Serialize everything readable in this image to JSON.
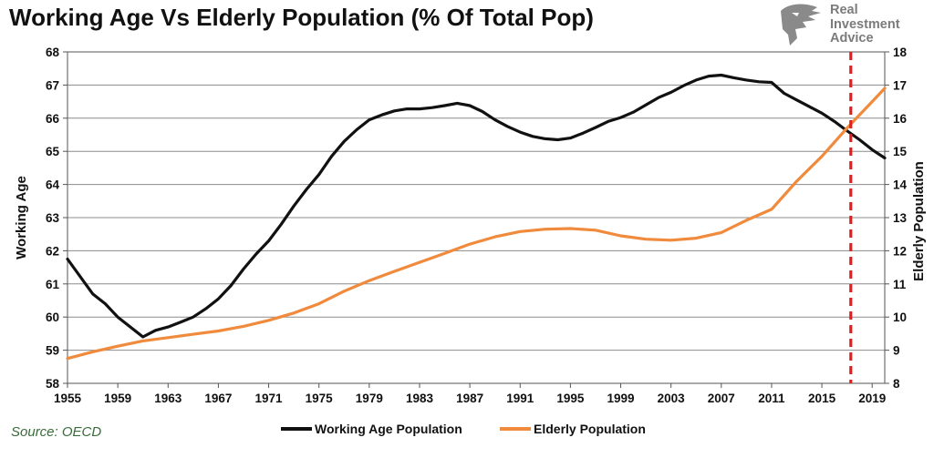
{
  "chart_data": {
    "type": "line",
    "title": "Working Age Vs Elderly Population (% Of Total Pop)",
    "source": "Source: OECD",
    "logo_lines": [
      "Real",
      "Investment",
      "Advice"
    ],
    "ylabel_left": "Working Age",
    "ylabel_right": "Elderly Population",
    "xlim": [
      1955,
      2020
    ],
    "ylim_left": [
      58,
      68
    ],
    "ylim_right": [
      8,
      18
    ],
    "x_ticks": [
      1955,
      1959,
      1963,
      1967,
      1971,
      1975,
      1979,
      1983,
      1987,
      1991,
      1995,
      1999,
      2003,
      2007,
      2011,
      2015,
      2019
    ],
    "y_ticks_left": [
      58,
      59,
      60,
      61,
      62,
      63,
      64,
      65,
      66,
      67,
      68
    ],
    "y_ticks_right": [
      8,
      9,
      10,
      11,
      12,
      13,
      14,
      15,
      16,
      17,
      18
    ],
    "grid": true,
    "legend_position": "bottom",
    "vline": {
      "x": 2017.3,
      "color": "#e81c1c",
      "style": "dashed"
    },
    "series": [
      {
        "name": "Working Age Population",
        "axis": "left",
        "color": "#111111",
        "x": [
          1955,
          1957,
          1958,
          1959,
          1960,
          1961,
          1962,
          1963,
          1964,
          1965,
          1966,
          1967,
          1968,
          1969,
          1970,
          1971,
          1972,
          1973,
          1974,
          1975,
          1976,
          1977,
          1978,
          1979,
          1980,
          1981,
          1982,
          1983,
          1984,
          1985,
          1986,
          1987,
          1988,
          1989,
          1990,
          1991,
          1992,
          1993,
          1994,
          1995,
          1996,
          1997,
          1998,
          1999,
          2000,
          2001,
          2002,
          2003,
          2004,
          2005,
          2006,
          2007,
          2008,
          2009,
          2010,
          2011,
          2012,
          2013,
          2014,
          2015,
          2016,
          2017,
          2018,
          2019,
          2020
        ],
        "values": [
          61.75,
          60.7,
          60.4,
          60.0,
          59.7,
          59.4,
          59.6,
          59.7,
          59.85,
          60.0,
          60.25,
          60.55,
          60.95,
          61.45,
          61.9,
          62.3,
          62.8,
          63.35,
          63.85,
          64.3,
          64.85,
          65.3,
          65.65,
          65.95,
          66.1,
          66.22,
          66.28,
          66.28,
          66.32,
          66.38,
          66.45,
          66.38,
          66.2,
          65.95,
          65.75,
          65.58,
          65.45,
          65.38,
          65.35,
          65.4,
          65.55,
          65.72,
          65.9,
          66.02,
          66.18,
          66.4,
          66.62,
          66.78,
          66.98,
          67.15,
          67.27,
          67.3,
          67.22,
          67.15,
          67.1,
          67.08,
          66.75,
          66.55,
          66.35,
          66.15,
          65.9,
          65.62,
          65.35,
          65.05,
          64.8
        ]
      },
      {
        "name": "Elderly Population",
        "axis": "right",
        "color": "#f08a3c",
        "x": [
          1955,
          1957,
          1959,
          1961,
          1963,
          1965,
          1967,
          1969,
          1971,
          1973,
          1975,
          1977,
          1979,
          1981,
          1983,
          1985,
          1987,
          1989,
          1991,
          1993,
          1995,
          1997,
          1999,
          2001,
          2003,
          2005,
          2007,
          2009,
          2011,
          2013,
          2015,
          2017,
          2019,
          2020
        ],
        "values": [
          8.75,
          8.95,
          9.12,
          9.28,
          9.38,
          9.48,
          9.58,
          9.72,
          9.9,
          10.12,
          10.4,
          10.78,
          11.1,
          11.38,
          11.65,
          11.92,
          12.2,
          12.42,
          12.58,
          12.65,
          12.67,
          12.62,
          12.45,
          12.35,
          12.32,
          12.38,
          12.55,
          12.92,
          13.25,
          14.1,
          14.85,
          15.7,
          16.5,
          16.9
        ]
      }
    ]
  }
}
